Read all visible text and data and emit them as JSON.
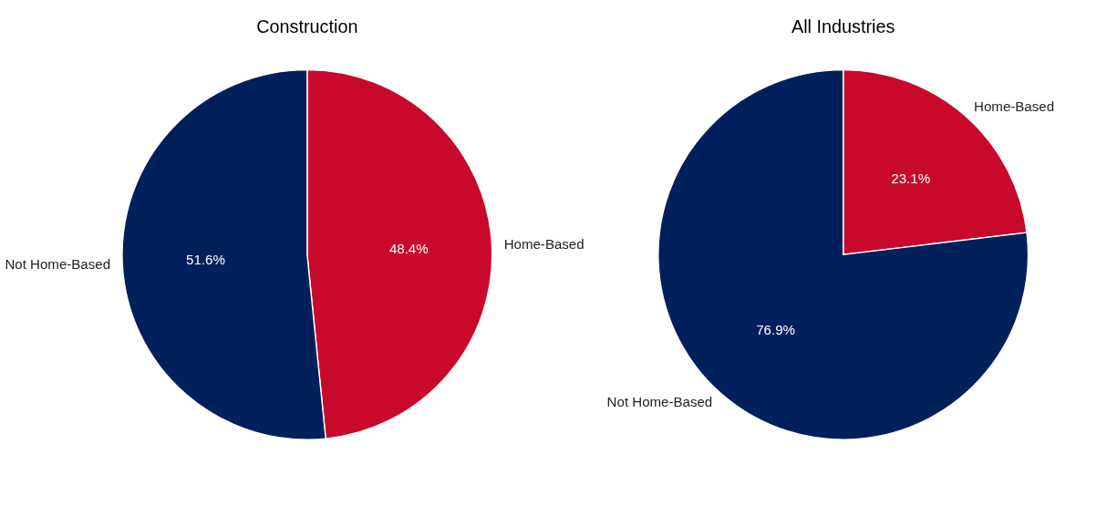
{
  "chart_data": [
    {
      "type": "pie",
      "title": "Construction",
      "categories": [
        "Home-Based",
        "Not Home-Based"
      ],
      "values": [
        48.4,
        51.6
      ],
      "value_labels": [
        "48.4%",
        "51.6%"
      ],
      "colors": [
        "#c8092c",
        "#00205b"
      ],
      "legend": false
    },
    {
      "type": "pie",
      "title": "All Industries",
      "categories": [
        "Home-Based",
        "Not Home-Based"
      ],
      "values": [
        23.1,
        76.9
      ],
      "value_labels": [
        "23.1%",
        "76.9%"
      ],
      "colors": [
        "#c8092c",
        "#00205b"
      ],
      "legend": false
    }
  ]
}
